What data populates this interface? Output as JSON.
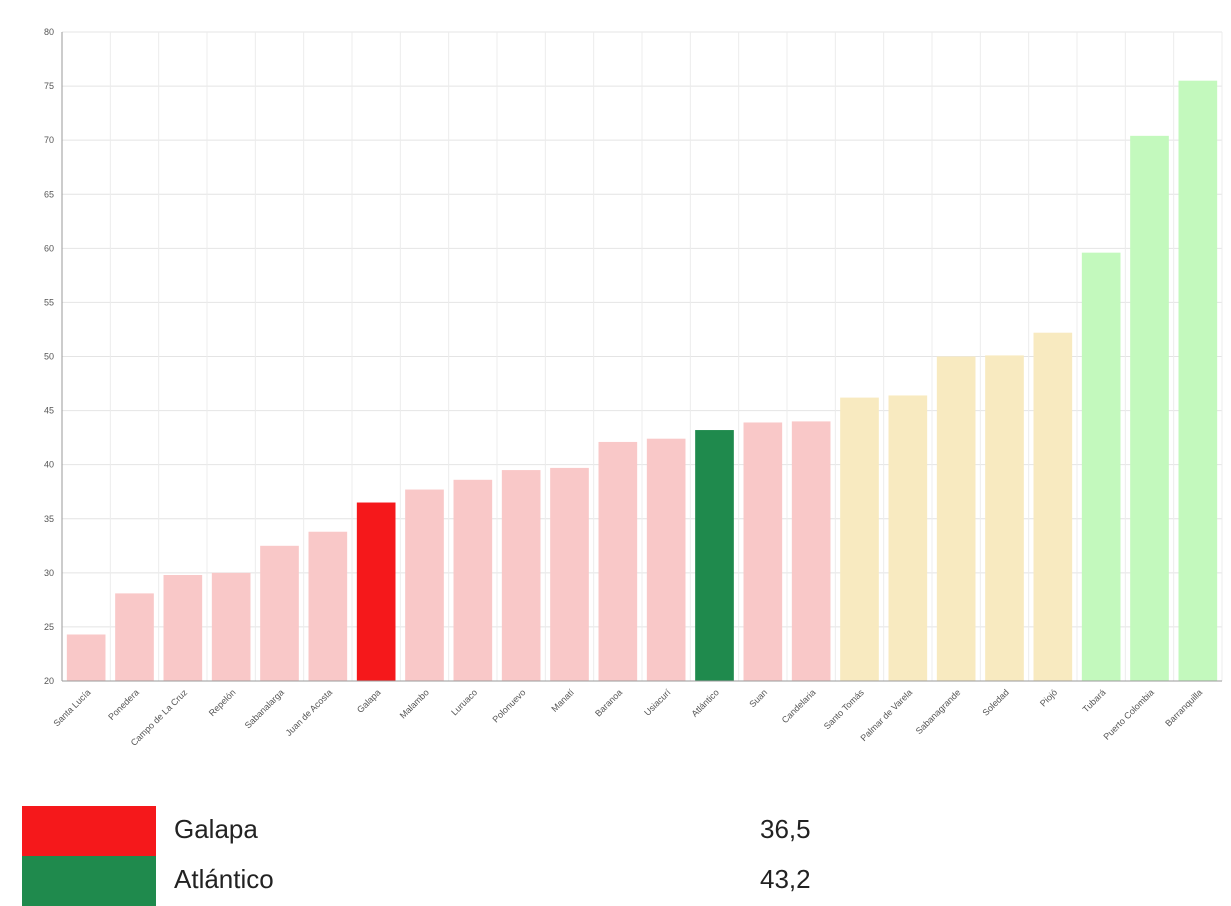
{
  "chart_data": {
    "type": "bar",
    "title": "",
    "xlabel": "",
    "ylabel": "",
    "ylim": [
      20,
      80
    ],
    "yticks": [
      20,
      25,
      30,
      35,
      40,
      45,
      50,
      55,
      60,
      65,
      70,
      75,
      80
    ],
    "grid": true,
    "categories": [
      "Santa Lucía",
      "Ponedera",
      "Campo de La Cruz",
      "Repelón",
      "Sabanalarga",
      "Juan de Acosta",
      "Galapa",
      "Malambo",
      "Luruaco",
      "Polonuevo",
      "Manatí",
      "Baranoa",
      "Usiacurí",
      "Atlántico",
      "Suan",
      "Candelaria",
      "Santo Tomás",
      "Palmar de Varela",
      "Sabanagrande",
      "Soledad",
      "Piojó",
      "Tubará",
      "Puerto Colombia",
      "Barranquilla"
    ],
    "values": [
      24.3,
      28.1,
      29.8,
      30.0,
      32.5,
      33.8,
      36.5,
      37.7,
      38.6,
      39.5,
      39.7,
      42.1,
      42.4,
      43.2,
      43.9,
      44.0,
      46.2,
      46.4,
      50.0,
      50.1,
      52.2,
      59.6,
      70.4,
      75.5
    ],
    "colors": [
      "#f9c8c8",
      "#f9c8c8",
      "#f9c8c8",
      "#f9c8c8",
      "#f9c8c8",
      "#f9c8c8",
      "#f5181b",
      "#f9c8c8",
      "#f9c8c8",
      "#f9c8c8",
      "#f9c8c8",
      "#f9c8c8",
      "#f9c8c8",
      "#1f8a4d",
      "#f9c8c8",
      "#f9c8c8",
      "#f8eac0",
      "#f8eac0",
      "#f8eac0",
      "#f8eac0",
      "#f8eac0",
      "#c3f9bd",
      "#c3f9bd",
      "#c3f9bd"
    ]
  },
  "legend": [
    {
      "name": "Galapa",
      "value": "36,5",
      "color": "#f5181b"
    },
    {
      "name": "Atlántico",
      "value": "43,2",
      "color": "#1f8a4d"
    }
  ]
}
